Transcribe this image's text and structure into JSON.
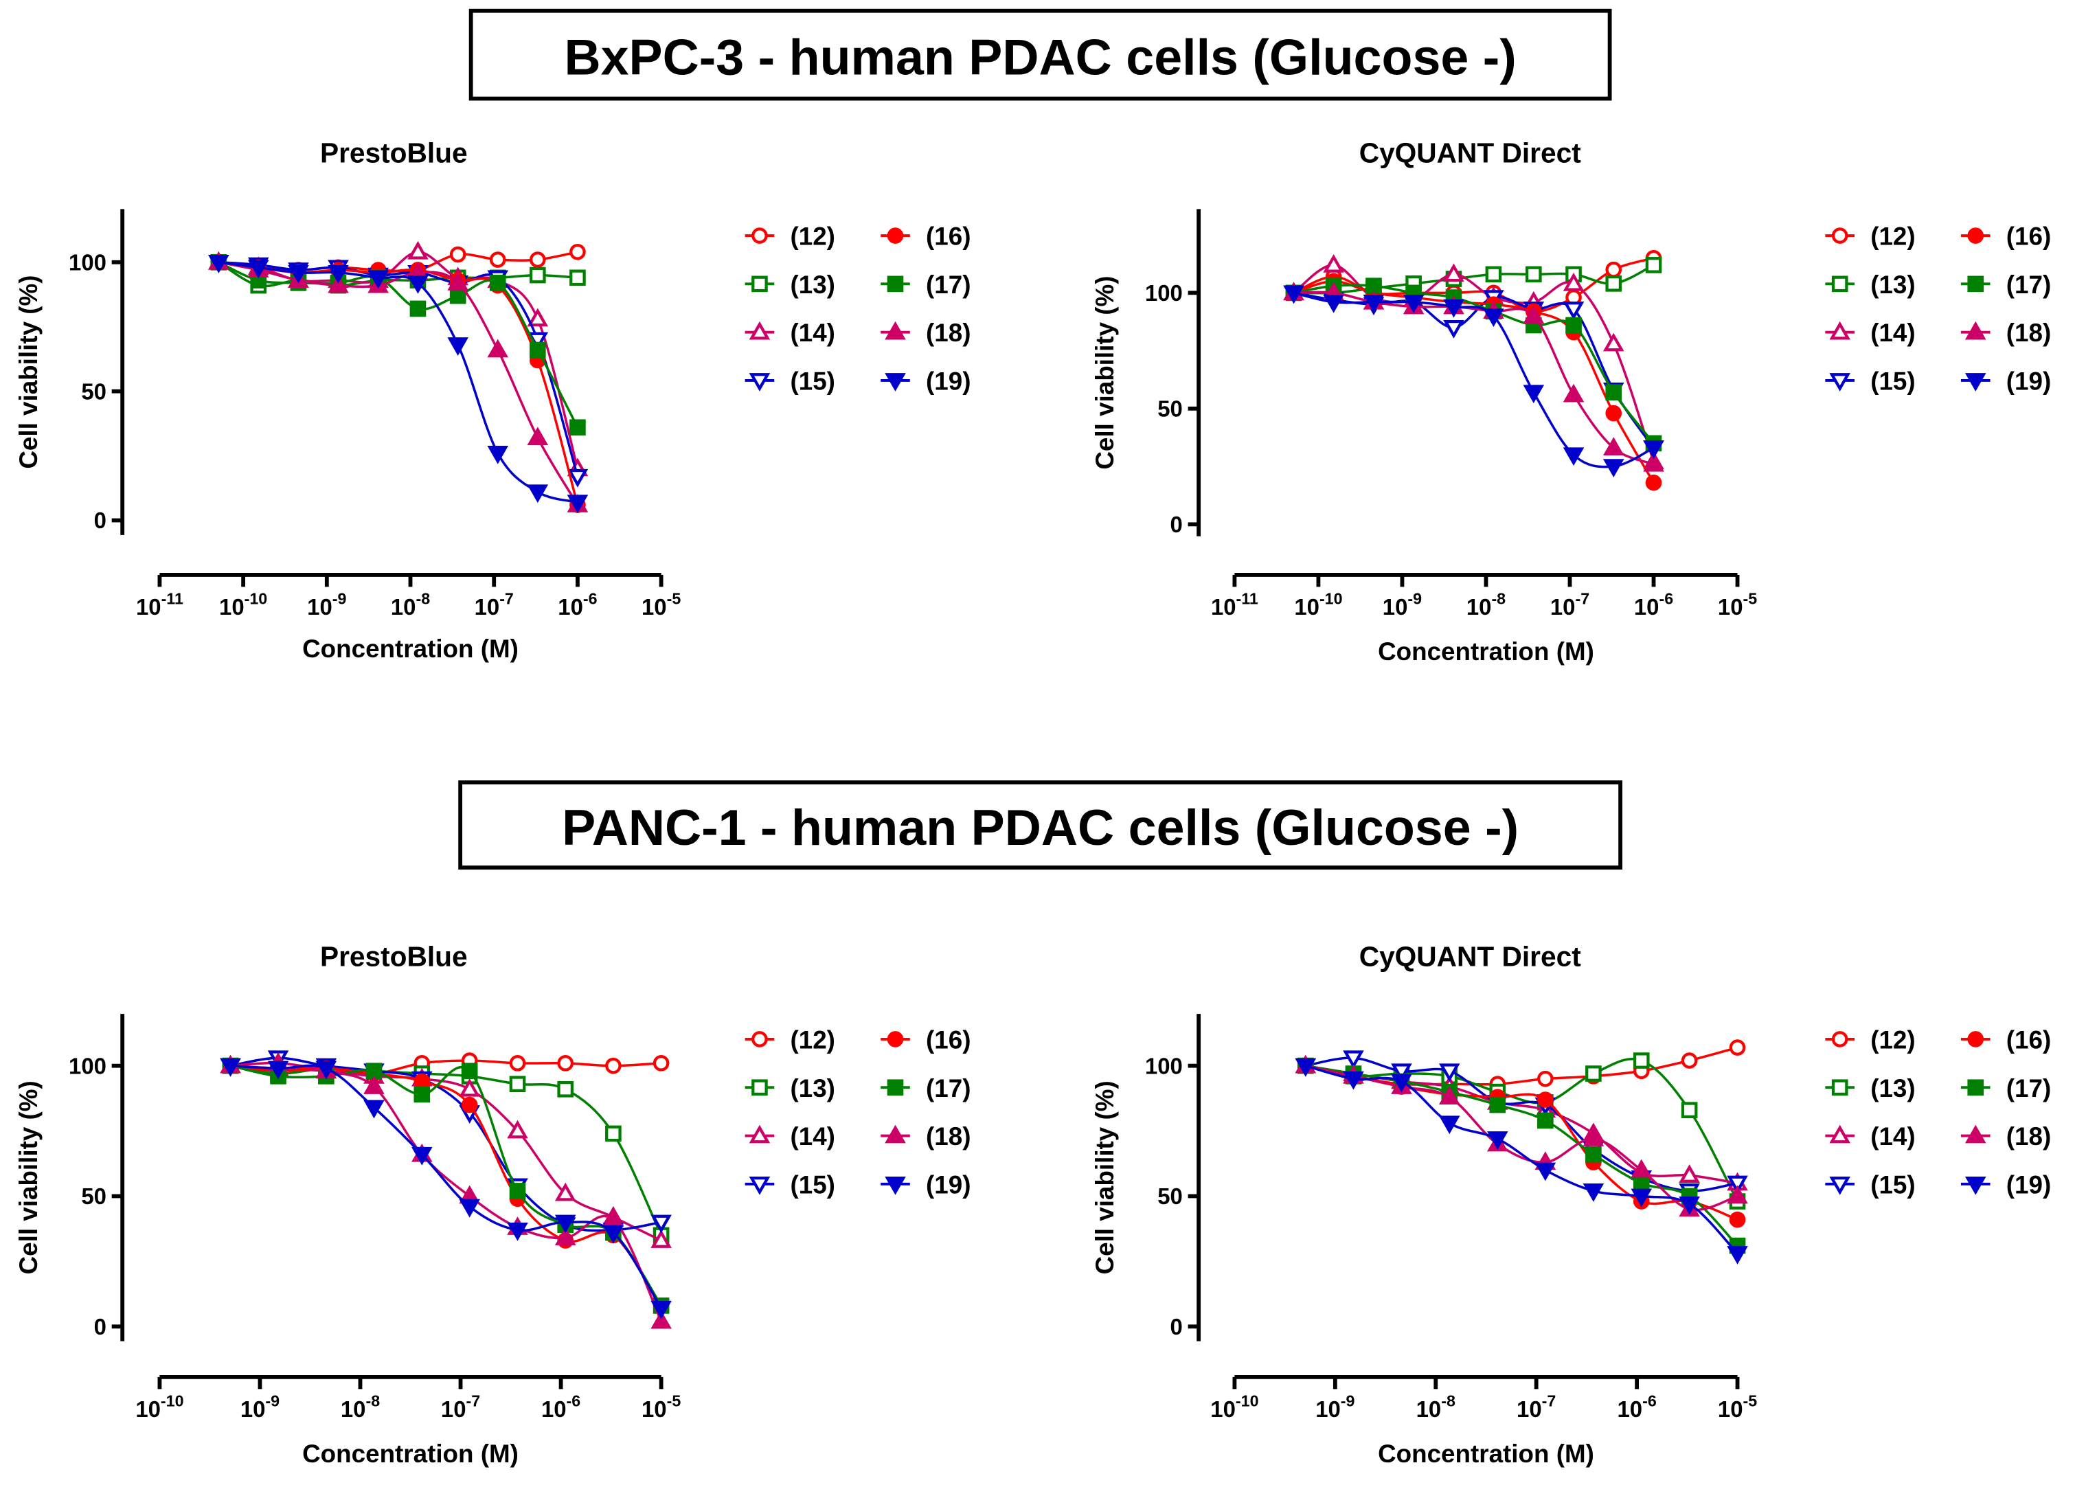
{
  "headers": {
    "top": "BxPC-3 - human PDAC cells (Glucose -)",
    "bottom": "PANC-1 - human PDAC cells  (Glucose -)"
  },
  "series_style": [
    {
      "name": "(12)",
      "shape": "circle",
      "filled": false,
      "color": "#ff0000"
    },
    {
      "name": "(13)",
      "shape": "square",
      "filled": false,
      "color": "#008000"
    },
    {
      "name": "(14)",
      "shape": "triangle-up",
      "filled": false,
      "color": "#cc0066"
    },
    {
      "name": "(15)",
      "shape": "triangle-down",
      "filled": false,
      "color": "#0000cc"
    },
    {
      "name": "(16)",
      "shape": "circle",
      "filled": true,
      "color": "#ff0000"
    },
    {
      "name": "(17)",
      "shape": "square",
      "filled": true,
      "color": "#008000"
    },
    {
      "name": "(18)",
      "shape": "triangle-up",
      "filled": true,
      "color": "#cc0066"
    },
    {
      "name": "(19)",
      "shape": "triangle-down",
      "filled": true,
      "color": "#0000cc"
    }
  ],
  "chart_data": [
    {
      "type": "scatter",
      "panel": "BxPC-3",
      "title": "PrestoBlue",
      "xlabel": "Concentration (M)",
      "ylabel": "Cell viability (%)",
      "xscale": "log",
      "xlim": [
        1e-11,
        1e-05
      ],
      "ylim": [
        -5,
        120
      ],
      "x_ticks": [
        {
          "base": "10",
          "exp": "-11"
        },
        {
          "base": "10",
          "exp": "-10"
        },
        {
          "base": "10",
          "exp": "-9"
        },
        {
          "base": "10",
          "exp": "-8"
        },
        {
          "base": "10",
          "exp": "-7"
        },
        {
          "base": "10",
          "exp": "-6"
        },
        {
          "base": "10",
          "exp": "-5"
        }
      ],
      "y_ticks": [
        "0",
        "50",
        "100"
      ],
      "legend": "right",
      "x": [
        5.08e-11,
        1.52e-10,
        4.57e-10,
        1.37e-09,
        4.12e-09,
        1.23e-08,
        3.7e-08,
        1.11e-07,
        3.33e-07,
        1e-06
      ],
      "series": [
        {
          "name": "(12)",
          "values": [
            100,
            98,
            97,
            98,
            97,
            97,
            103,
            101,
            101,
            104
          ]
        },
        {
          "name": "(13)",
          "values": [
            100,
            91,
            93,
            91,
            93,
            93,
            94,
            94,
            95,
            94
          ]
        },
        {
          "name": "(14)",
          "values": [
            100,
            98,
            93,
            93,
            93,
            104,
            94,
            93,
            78,
            20
          ]
        },
        {
          "name": "(15)",
          "values": [
            100,
            99,
            97,
            98,
            95,
            96,
            92,
            94,
            70,
            17
          ]
        },
        {
          "name": "(16)",
          "values": [
            100,
            98,
            96,
            97,
            96,
            97,
            93,
            91,
            62,
            6
          ]
        },
        {
          "name": "(17)",
          "values": [
            100,
            93,
            92,
            92,
            94,
            82,
            87,
            92,
            66,
            36
          ]
        },
        {
          "name": "(18)",
          "values": [
            100,
            97,
            93,
            91,
            91,
            96,
            92,
            66,
            32,
            6
          ]
        },
        {
          "name": "(19)",
          "values": [
            100,
            98,
            96,
            96,
            94,
            92,
            68,
            26,
            11,
            7
          ]
        }
      ]
    },
    {
      "type": "scatter",
      "panel": "BxPC-3",
      "title": "CyQUANT Direct",
      "xlabel": "Concentration (M)",
      "ylabel": "Cell viability (%)",
      "xscale": "log",
      "xlim": [
        1e-11,
        1e-05
      ],
      "ylim": [
        -5,
        136
      ],
      "x_ticks": [
        {
          "base": "10",
          "exp": "-11"
        },
        {
          "base": "10",
          "exp": "-10"
        },
        {
          "base": "10",
          "exp": "-9"
        },
        {
          "base": "10",
          "exp": "-8"
        },
        {
          "base": "10",
          "exp": "-7"
        },
        {
          "base": "10",
          "exp": "-6"
        },
        {
          "base": "10",
          "exp": "-5"
        }
      ],
      "y_ticks": [
        "0",
        "50",
        "100"
      ],
      "legend": "right",
      "x": [
        5.08e-11,
        1.52e-10,
        4.57e-10,
        1.37e-09,
        4.12e-09,
        1.23e-08,
        3.7e-08,
        1.11e-07,
        3.33e-07,
        1e-06
      ],
      "series": [
        {
          "name": "(12)",
          "values": [
            100,
            107,
            100,
            100,
            100,
            100,
            92,
            98,
            110,
            115
          ]
        },
        {
          "name": "(13)",
          "values": [
            100,
            100,
            102,
            104,
            106,
            108,
            108,
            108,
            104,
            112
          ]
        },
        {
          "name": "(14)",
          "values": [
            100,
            112,
            98,
            97,
            108,
            98,
            96,
            104,
            78,
            27
          ]
        },
        {
          "name": "(15)",
          "values": [
            100,
            97,
            95,
            96,
            85,
            98,
            93,
            93,
            58,
            33
          ]
        },
        {
          "name": "(16)",
          "values": [
            100,
            105,
            100,
            98,
            96,
            95,
            92,
            83,
            48,
            18
          ]
        },
        {
          "name": "(17)",
          "values": [
            100,
            103,
            103,
            100,
            98,
            92,
            86,
            86,
            57,
            35
          ]
        },
        {
          "name": "(18)",
          "values": [
            100,
            100,
            96,
            94,
            94,
            92,
            90,
            56,
            33,
            26
          ]
        },
        {
          "name": "(19)",
          "values": [
            100,
            96,
            96,
            96,
            94,
            90,
            57,
            30,
            25,
            33
          ]
        }
      ]
    },
    {
      "type": "scatter",
      "panel": "PANC-1",
      "title": "PrestoBlue",
      "xlabel": "Concentration (M)",
      "ylabel": "Cell viability (%)",
      "xscale": "log",
      "xlim": [
        1e-10,
        1e-05
      ],
      "ylim": [
        -5,
        120
      ],
      "x_ticks": [
        {
          "base": "10",
          "exp": "-10"
        },
        {
          "base": "10",
          "exp": "-9"
        },
        {
          "base": "10",
          "exp": "-8"
        },
        {
          "base": "10",
          "exp": "-7"
        },
        {
          "base": "10",
          "exp": "-6"
        },
        {
          "base": "10",
          "exp": "-5"
        }
      ],
      "y_ticks": [
        "0",
        "50",
        "100"
      ],
      "legend": "right",
      "x": [
        5.08e-10,
        1.52e-09,
        4.57e-09,
        1.37e-08,
        4.12e-08,
        1.23e-07,
        3.7e-07,
        1.11e-06,
        3.33e-06,
        1e-05
      ],
      "series": [
        {
          "name": "(12)",
          "values": [
            100,
            99,
            99,
            97,
            101,
            102,
            101,
            101,
            100,
            101
          ]
        },
        {
          "name": "(13)",
          "values": [
            100,
            97,
            99,
            98,
            97,
            96,
            93,
            91,
            74,
            35
          ]
        },
        {
          "name": "(14)",
          "values": [
            100,
            99,
            98,
            96,
            95,
            91,
            75,
            51,
            42,
            33
          ]
        },
        {
          "name": "(15)",
          "values": [
            100,
            103,
            100,
            98,
            95,
            82,
            54,
            39,
            37,
            40
          ]
        },
        {
          "name": "(16)",
          "values": [
            100,
            98,
            99,
            97,
            94,
            85,
            49,
            33,
            35,
            8
          ]
        },
        {
          "name": "(17)",
          "values": [
            100,
            96,
            96,
            98,
            89,
            98,
            52,
            39,
            36,
            8
          ]
        },
        {
          "name": "(18)",
          "values": [
            100,
            101,
            98,
            92,
            66,
            50,
            38,
            34,
            41,
            2
          ]
        },
        {
          "name": "(19)",
          "values": [
            100,
            99,
            99,
            84,
            66,
            46,
            37,
            40,
            36,
            7
          ]
        }
      ]
    },
    {
      "type": "scatter",
      "panel": "PANC-1",
      "title": "CyQUANT Direct",
      "xlabel": "Concentration (M)",
      "ylabel": "Cell viability (%)",
      "xscale": "log",
      "xlim": [
        1e-10,
        1e-05
      ],
      "ylim": [
        -5,
        120
      ],
      "x_ticks": [
        {
          "base": "10",
          "exp": "-10"
        },
        {
          "base": "10",
          "exp": "-9"
        },
        {
          "base": "10",
          "exp": "-8"
        },
        {
          "base": "10",
          "exp": "-7"
        },
        {
          "base": "10",
          "exp": "-6"
        },
        {
          "base": "10",
          "exp": "-5"
        }
      ],
      "y_ticks": [
        "0",
        "50",
        "100"
      ],
      "legend": "right",
      "x": [
        5.08e-10,
        1.52e-09,
        4.57e-09,
        1.37e-08,
        4.12e-08,
        1.23e-07,
        3.7e-07,
        1.11e-06,
        3.33e-06,
        1e-05
      ],
      "series": [
        {
          "name": "(12)",
          "values": [
            100,
            96,
            93,
            93,
            93,
            95,
            96,
            98,
            102,
            107
          ]
        },
        {
          "name": "(13)",
          "values": [
            100,
            96,
            97,
            96,
            90,
            86,
            97,
            102,
            83,
            48
          ]
        },
        {
          "name": "(14)",
          "values": [
            100,
            97,
            94,
            92,
            86,
            83,
            74,
            59,
            58,
            55
          ]
        },
        {
          "name": "(15)",
          "values": [
            100,
            103,
            98,
            98,
            86,
            85,
            68,
            57,
            52,
            55
          ]
        },
        {
          "name": "(16)",
          "values": [
            100,
            96,
            92,
            89,
            88,
            87,
            63,
            48,
            48,
            41
          ]
        },
        {
          "name": "(17)",
          "values": [
            100,
            97,
            94,
            90,
            85,
            79,
            66,
            55,
            50,
            31
          ]
        },
        {
          "name": "(18)",
          "values": [
            100,
            96,
            92,
            88,
            70,
            63,
            72,
            60,
            45,
            50
          ]
        },
        {
          "name": "(19)",
          "values": [
            100,
            95,
            94,
            78,
            72,
            60,
            52,
            50,
            47,
            28
          ]
        }
      ]
    }
  ]
}
